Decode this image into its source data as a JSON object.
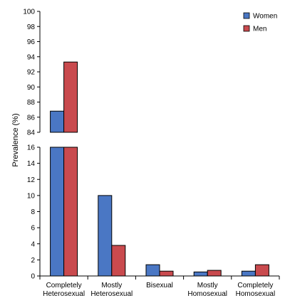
{
  "chart_data": {
    "type": "bar",
    "title": "",
    "ylabel": "Prevalence (%)",
    "xlabel": "",
    "axis_break": {
      "lower_range": [
        0,
        16
      ],
      "upper_range": [
        84,
        100
      ]
    },
    "lower_ticks": [
      0,
      2,
      4,
      6,
      8,
      10,
      12,
      14,
      16
    ],
    "upper_ticks": [
      84,
      86,
      88,
      90,
      92,
      94,
      96,
      98,
      100
    ],
    "categories": [
      [
        "Completely",
        "Heterosexual"
      ],
      [
        "Mostly",
        "Heterosexual"
      ],
      [
        "Bisexual"
      ],
      [
        "Mostly",
        "Homosexual"
      ],
      [
        "Completely",
        "Homosexual"
      ]
    ],
    "series": [
      {
        "name": "Women",
        "color": "#4a77c4",
        "values": [
          86.8,
          10.0,
          1.4,
          0.5,
          0.6
        ]
      },
      {
        "name": "Men",
        "color": "#c94a4e",
        "values": [
          93.3,
          3.8,
          0.6,
          0.7,
          1.4
        ]
      }
    ],
    "legend": {
      "position": "top-right"
    },
    "grid": false
  }
}
